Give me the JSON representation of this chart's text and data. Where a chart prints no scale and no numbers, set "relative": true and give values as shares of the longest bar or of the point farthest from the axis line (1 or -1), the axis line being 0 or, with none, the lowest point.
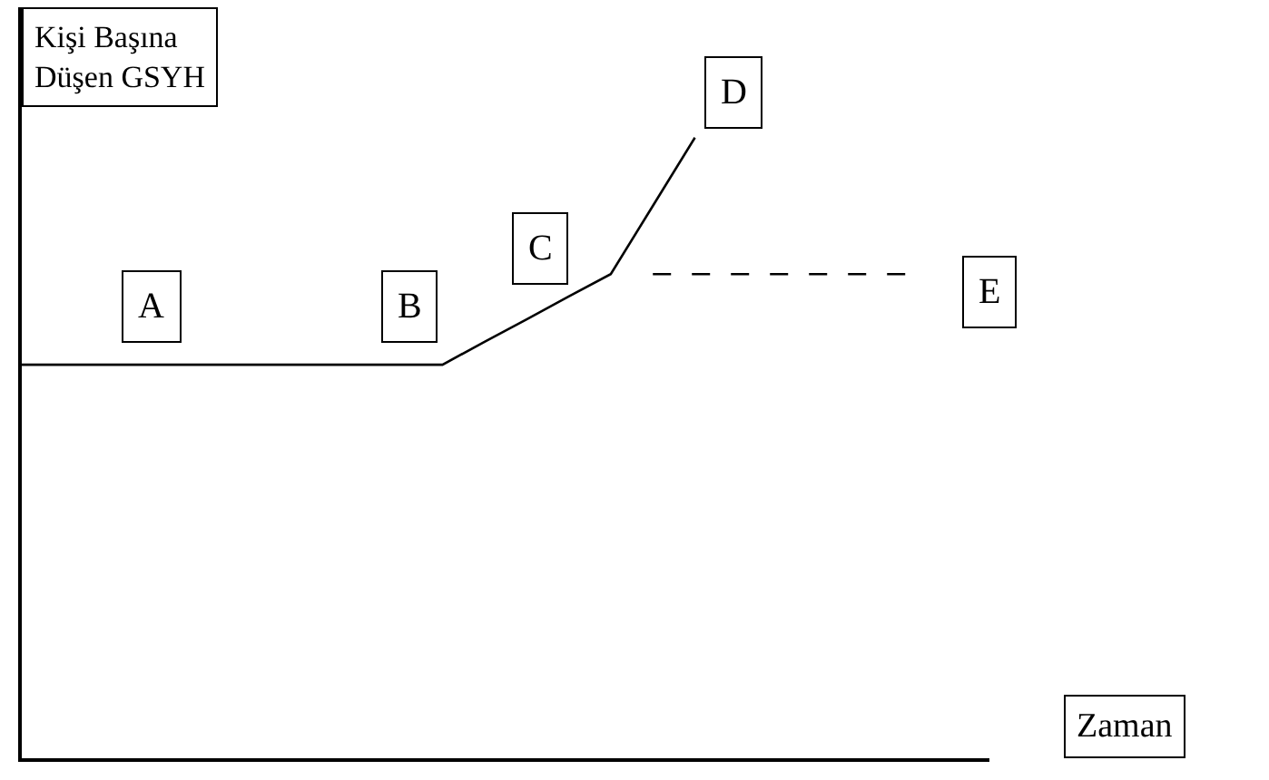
{
  "chart_data": {
    "type": "line",
    "relative": true,
    "xlabel": "Zaman",
    "ylabel": "Kişi Başına\nDüşen GSYH",
    "tick_labels": false,
    "marker": "none",
    "categories": [
      null,
      null,
      null,
      null,
      null,
      null,
      null,
      null,
      null,
      null,
      null,
      null,
      null,
      null,
      null,
      null,
      null,
      null,
      null,
      null,
      null,
      null,
      null,
      null
    ],
    "series": [
      {
        "color": "#000000",
        "line_style": "solid",
        "values": [
          0.634,
          0.634,
          0.634,
          0.634,
          0.634,
          0.634,
          0.634,
          0.634,
          0.634,
          0.634,
          0.634,
          0.671,
          0.707,
          0.744,
          0.78,
          0.89,
          1.0,
          null,
          null,
          null,
          null,
          null,
          null,
          null
        ]
      },
      {
        "color": "#000000",
        "line_style": "dashed",
        "values": [
          null,
          null,
          null,
          null,
          null,
          null,
          null,
          null,
          null,
          null,
          null,
          null,
          null,
          null,
          null,
          0.78,
          0.78,
          0.78,
          0.78,
          0.78,
          0.78,
          0.78,
          null,
          null
        ]
      }
    ],
    "annotations": [
      "A",
      "B",
      "C",
      "D",
      "E"
    ]
  }
}
